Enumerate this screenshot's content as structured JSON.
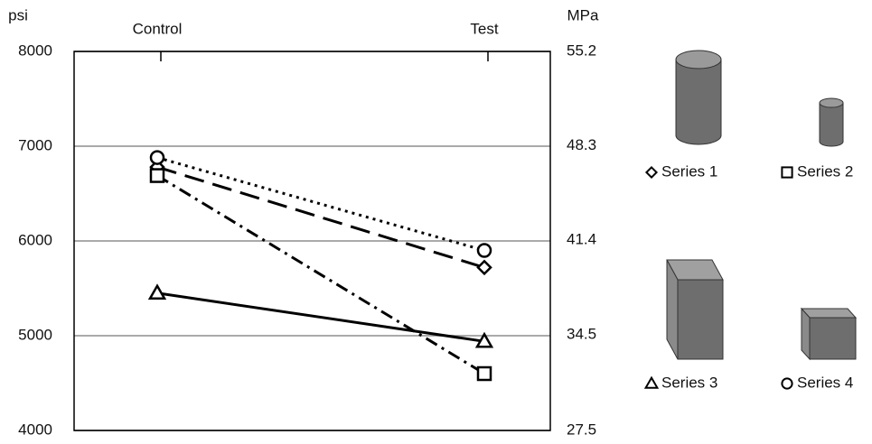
{
  "chart_data": {
    "type": "line",
    "y_label": "psi",
    "y2_label": "MPa",
    "categories": [
      "Control",
      "Test"
    ],
    "ylim": [
      4000,
      8000
    ],
    "yticks": [
      4000,
      5000,
      6000,
      7000,
      8000
    ],
    "y2lim": [
      27.5,
      55.2
    ],
    "y2ticks": [
      27.5,
      34.5,
      41.4,
      48.3,
      55.2
    ],
    "grid": true,
    "legend": "right",
    "series": [
      {
        "name": "Series 1",
        "color": "#000000",
        "marker": "diamond",
        "dash": "long-dash",
        "values": [
          6780,
          5720
        ]
      },
      {
        "name": "Series 2",
        "color": "#000000",
        "marker": "square",
        "dash": "dash-dot",
        "values": [
          6690,
          4600
        ]
      },
      {
        "name": "Series 3",
        "color": "#000000",
        "marker": "triangle",
        "dash": "solid",
        "values": [
          5450,
          4940
        ]
      },
      {
        "name": "Series 4",
        "color": "#000000",
        "marker": "circle",
        "dash": "dotted",
        "values": [
          6880,
          5900
        ]
      }
    ]
  }
}
